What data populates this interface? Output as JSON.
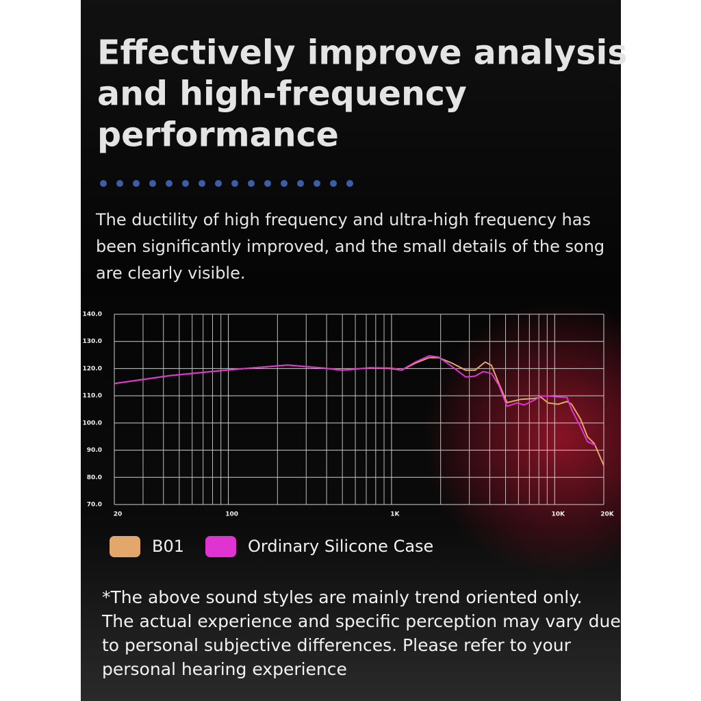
{
  "headline": [
    "Effectively improve analysis",
    "and high-frequency",
    "performance"
  ],
  "description": [
    "The ductility of high frequency and ultra-high frequency has",
    "been significantly improved, and the small details of the song",
    "are clearly visible."
  ],
  "note": [
    "*The above sound styles are mainly trend oriented only.",
    "The actual experience and specific perception may vary due",
    "to personal subjective differences. Please refer to your",
    "personal hearing experience"
  ],
  "chart_data": {
    "type": "line",
    "xscale": "log",
    "grid": true,
    "xlim": [
      20,
      20000
    ],
    "xticks": [
      20,
      100,
      {
        "value": 1000,
        "label": "1K"
      },
      {
        "value": 10000,
        "label": "10K"
      },
      {
        "value": 20000,
        "label": "20K"
      }
    ],
    "xminorticks": [
      30,
      40,
      50,
      60,
      70,
      80,
      90,
      200,
      300,
      400,
      500,
      600,
      700,
      800,
      900,
      2000,
      3000,
      4000,
      5000,
      6000,
      7000,
      8000,
      9000
    ],
    "ylim": [
      70,
      140
    ],
    "yticks": [
      {
        "value": 70,
        "label": "70.0"
      },
      {
        "value": 80,
        "label": "80.0"
      },
      {
        "value": 90,
        "label": "90.0"
      },
      {
        "value": 100,
        "label": "100.0"
      },
      {
        "value": 110,
        "label": "110.0"
      },
      {
        "value": 120,
        "label": "120.0"
      },
      {
        "value": 130,
        "label": "130.0"
      },
      {
        "value": 140,
        "label": "140.0"
      }
    ],
    "series": [
      {
        "name": "B01",
        "color": "#e3a76c",
        "x": [
          20,
          45,
          100,
          230,
          380,
          500,
          740,
          1000,
          1150,
          1400,
          1700,
          1950,
          2350,
          2850,
          3250,
          3750,
          4100,
          4550,
          5100,
          6200,
          7500,
          8250,
          9100,
          10500,
          11900,
          12700,
          14400,
          15900,
          17500,
          20000
        ],
        "values": [
          114.5,
          117.5,
          119.5,
          121.3,
          120.2,
          119.4,
          120.3,
          120,
          119.4,
          122,
          124,
          124,
          122,
          119.4,
          119.4,
          122.4,
          121.2,
          114.5,
          107.5,
          108.7,
          109,
          109.5,
          107.4,
          106.9,
          107.9,
          106.9,
          101.4,
          94.9,
          92.4,
          84.4
        ]
      },
      {
        "name": "Ordinary Silicone Case",
        "color": "#e034d2",
        "x": [
          20,
          45,
          100,
          230,
          380,
          500,
          740,
          1000,
          1150,
          1400,
          1700,
          1950,
          2350,
          2850,
          3250,
          3650,
          4100,
          4550,
          5100,
          5900,
          6500,
          7500,
          8250,
          9100,
          10500,
          11900,
          12700,
          14400,
          15900,
          17800
        ],
        "values": [
          114.5,
          117.5,
          119.5,
          121.3,
          120.2,
          119.4,
          120.3,
          120.2,
          119.4,
          122.4,
          124.7,
          124.2,
          120.7,
          116.9,
          117.2,
          118.9,
          118.2,
          113.9,
          106.1,
          107.4,
          106.6,
          108.4,
          109.9,
          109.9,
          109.6,
          109.4,
          104.9,
          98.6,
          93.1,
          91.8
        ]
      }
    ]
  }
}
